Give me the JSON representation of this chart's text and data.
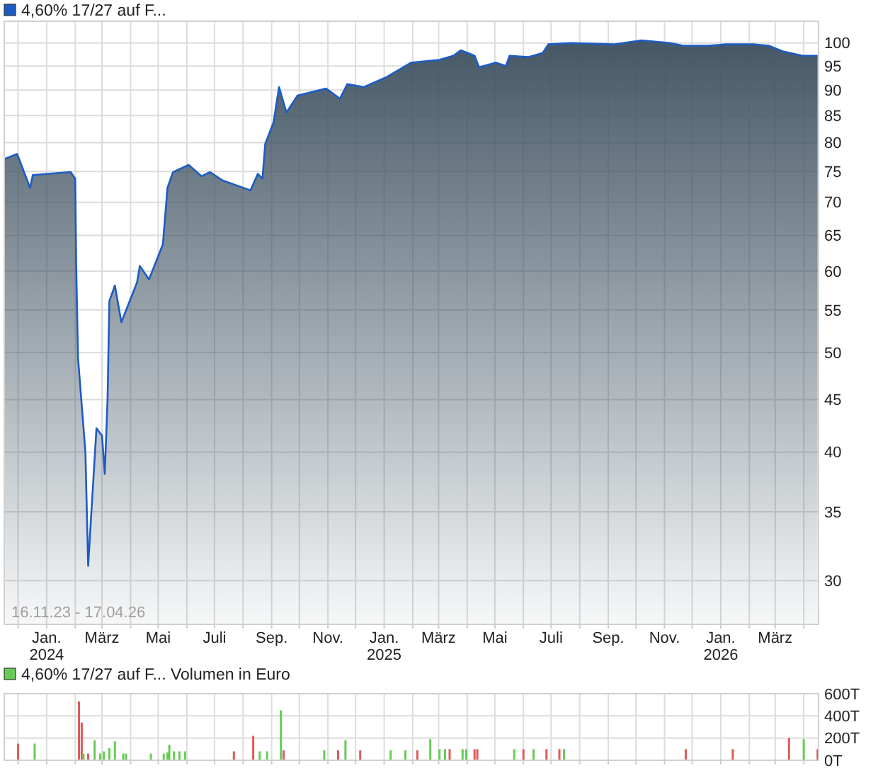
{
  "chart_data": [
    {
      "type": "area",
      "title": "4,60% 17/27 auf F...",
      "annotations": [
        "16.11.23 - 17.04.26"
      ],
      "log": true,
      "grid": true,
      "xlim": [
        "2023-11-16",
        "2026-04-17"
      ],
      "xticks": [
        {
          "value": "2023-12-01",
          "label": null
        },
        {
          "value": "2024-01-01",
          "label": "Jan.\n2024"
        },
        {
          "value": "2024-02-01",
          "label": null
        },
        {
          "value": "2024-03-01",
          "label": "März"
        },
        {
          "value": "2024-04-01",
          "label": null
        },
        {
          "value": "2024-05-01",
          "label": "Mai"
        },
        {
          "value": "2024-06-01",
          "label": null
        },
        {
          "value": "2024-07-01",
          "label": "Juli"
        },
        {
          "value": "2024-08-01",
          "label": null
        },
        {
          "value": "2024-09-01",
          "label": "Sep."
        },
        {
          "value": "2024-10-01",
          "label": null
        },
        {
          "value": "2024-11-01",
          "label": "Nov."
        },
        {
          "value": "2024-12-01",
          "label": null
        },
        {
          "value": "2025-01-01",
          "label": "Jan.\n2025"
        },
        {
          "value": "2025-02-01",
          "label": null
        },
        {
          "value": "2025-03-01",
          "label": "März"
        },
        {
          "value": "2025-04-01",
          "label": null
        },
        {
          "value": "2025-05-01",
          "label": "Mai"
        },
        {
          "value": "2025-06-01",
          "label": null
        },
        {
          "value": "2025-07-01",
          "label": "Juli"
        },
        {
          "value": "2025-08-01",
          "label": null
        },
        {
          "value": "2025-09-01",
          "label": "Sep."
        },
        {
          "value": "2025-10-01",
          "label": null
        },
        {
          "value": "2025-11-01",
          "label": "Nov."
        },
        {
          "value": "2025-12-01",
          "label": null
        },
        {
          "value": "2026-01-01",
          "label": "Jan.\n2026"
        },
        {
          "value": "2026-02-01",
          "label": null
        },
        {
          "value": "2026-03-01",
          "label": "März"
        },
        {
          "value": "2026-04-01",
          "label": null
        }
      ],
      "ylim": [
        27.2,
        105
      ],
      "yticks": [
        30,
        35,
        40,
        45,
        50,
        55,
        60,
        65,
        70,
        75,
        80,
        85,
        90,
        95,
        100
      ],
      "x": [
        "2023-11-16",
        "2023-11-30",
        "2023-12-14",
        "2023-12-17",
        "2024-01-27",
        "2024-02-01",
        "2024-02-02",
        "2024-02-04",
        "2024-02-12",
        "2024-02-15",
        "2024-02-18",
        "2024-02-24",
        "2024-03-01",
        "2024-03-04",
        "2024-03-07",
        "2024-03-09",
        "2024-03-15",
        "2024-03-22",
        "2024-04-08",
        "2024-04-11",
        "2024-04-21",
        "2024-05-06",
        "2024-05-11",
        "2024-05-17",
        "2024-06-03",
        "2024-06-17",
        "2024-06-26",
        "2024-07-10",
        "2024-08-09",
        "2024-08-17",
        "2024-08-22",
        "2024-08-25",
        "2024-09-03",
        "2024-09-09",
        "2024-09-17",
        "2024-09-29",
        "2024-10-30",
        "2024-11-14",
        "2024-11-22",
        "2024-12-10",
        "2025-01-04",
        "2025-01-30",
        "2025-03-02",
        "2025-03-17",
        "2025-03-25",
        "2025-04-09",
        "2025-04-14",
        "2025-05-02",
        "2025-05-13",
        "2025-05-17",
        "2025-06-06",
        "2025-06-22",
        "2025-06-28",
        "2025-07-22",
        "2025-09-07",
        "2025-10-07",
        "2025-11-07",
        "2025-11-21",
        "2025-12-18",
        "2026-01-07",
        "2026-02-07",
        "2026-02-22",
        "2026-03-10",
        "2026-03-31",
        "2026-04-16"
      ],
      "series": [
        {
          "color": "#1c5cc4",
          "values": [
            77.1,
            78.0,
            72.3,
            74.4,
            74.9,
            73.8,
            60.9,
            49.4,
            40.0,
            31.0,
            34.4,
            42.2,
            41.5,
            38.1,
            45.0,
            56.1,
            58.1,
            53.5,
            58.5,
            60.7,
            58.9,
            63.7,
            72.3,
            74.9,
            76.1,
            74.2,
            74.9,
            73.5,
            71.9,
            74.6,
            73.8,
            79.8,
            83.7,
            90.6,
            85.6,
            88.9,
            90.3,
            88.3,
            91.2,
            90.6,
            92.7,
            95.7,
            96.3,
            97.2,
            98.4,
            97.2,
            94.7,
            95.7,
            95.0,
            97.2,
            96.9,
            97.8,
            99.7,
            100,
            99.7,
            100.6,
            100,
            99.4,
            99.4,
            99.7,
            99.7,
            99.4,
            98.1,
            97.2,
            97.2
          ]
        }
      ]
    },
    {
      "type": "bar",
      "title": "4,60% 17/27 auf F... Volumen in Euro",
      "grid": true,
      "tick_labels": "y",
      "xlim": [
        "2023-11-16",
        "2026-04-17"
      ],
      "xticks": [
        {
          "value": "2023-12-01",
          "label": null
        },
        {
          "value": "2024-01-01",
          "label": null
        },
        {
          "value": "2024-02-01",
          "label": null
        },
        {
          "value": "2024-03-01",
          "label": null
        },
        {
          "value": "2024-04-01",
          "label": null
        },
        {
          "value": "2024-05-01",
          "label": null
        },
        {
          "value": "2024-06-01",
          "label": null
        },
        {
          "value": "2024-07-01",
          "label": null
        },
        {
          "value": "2024-08-01",
          "label": null
        },
        {
          "value": "2024-09-01",
          "label": null
        },
        {
          "value": "2024-10-01",
          "label": null
        },
        {
          "value": "2024-11-01",
          "label": null
        },
        {
          "value": "2024-12-01",
          "label": null
        },
        {
          "value": "2025-01-01",
          "label": null
        },
        {
          "value": "2025-02-01",
          "label": null
        },
        {
          "value": "2025-03-01",
          "label": null
        },
        {
          "value": "2025-04-01",
          "label": null
        },
        {
          "value": "2025-05-01",
          "label": null
        },
        {
          "value": "2025-06-01",
          "label": null
        },
        {
          "value": "2025-07-01",
          "label": null
        },
        {
          "value": "2025-08-01",
          "label": null
        },
        {
          "value": "2025-09-01",
          "label": null
        },
        {
          "value": "2025-10-01",
          "label": null
        },
        {
          "value": "2025-11-01",
          "label": null
        },
        {
          "value": "2025-12-01",
          "label": null
        },
        {
          "value": "2026-01-01",
          "label": null
        },
        {
          "value": "2026-02-01",
          "label": null
        },
        {
          "value": "2026-03-01",
          "label": null
        },
        {
          "value": "2026-04-01",
          "label": null
        }
      ],
      "ylim": [
        0,
        600
      ],
      "yticks": [
        {
          "value": 0,
          "label": "0T"
        },
        {
          "value": 200,
          "label": "200T"
        },
        {
          "value": 400,
          "label": "400T"
        },
        {
          "value": 600,
          "label": "600T"
        }
      ],
      "x": [
        "2023-12-01",
        "2023-12-19",
        "2024-02-05",
        "2024-02-08",
        "2024-02-10",
        "2024-02-15",
        "2024-02-22",
        "2024-02-28",
        "2024-03-03",
        "2024-03-09",
        "2024-03-15",
        "2024-03-24",
        "2024-03-27",
        "2024-04-23",
        "2024-05-07",
        "2024-05-11",
        "2024-05-13",
        "2024-05-18",
        "2024-05-24",
        "2024-05-30",
        "2024-07-22",
        "2024-08-12",
        "2024-08-19",
        "2024-08-27",
        "2024-09-11",
        "2024-09-14",
        "2024-10-28",
        "2024-11-12",
        "2024-11-20",
        "2024-12-06",
        "2025-01-08",
        "2025-01-24",
        "2025-02-06",
        "2025-02-20",
        "2025-03-02",
        "2025-03-08",
        "2025-03-13",
        "2025-03-27",
        "2025-03-31",
        "2025-04-09",
        "2025-04-12",
        "2025-05-22",
        "2025-06-01",
        "2025-06-12",
        "2025-06-26",
        "2025-07-10",
        "2025-07-15",
        "2025-11-24",
        "2026-01-14",
        "2026-03-16",
        "2026-04-01",
        "2026-04-16"
      ],
      "series": [
        {
          "color": "#66cc55",
          "values": [
            150,
            150,
            530,
            340,
            60,
            60,
            180,
            60,
            80,
            110,
            170,
            60,
            60,
            60,
            60,
            70,
            140,
            80,
            80,
            80,
            80,
            220,
            80,
            80,
            450,
            90,
            90,
            90,
            180,
            90,
            90,
            90,
            90,
            190,
            100,
            100,
            100,
            100,
            100,
            100,
            100,
            100,
            100,
            100,
            100,
            100,
            100,
            100,
            100,
            200,
            190,
            100
          ],
          "colors": [
            "#e05a5a",
            "#66cc55",
            "#e05a5a",
            "#e05a5a",
            "#66cc55",
            "#e05a5a",
            "#66cc55",
            "#66cc55",
            "#66cc55",
            "#66cc55",
            "#66cc55",
            "#66cc55",
            "#66cc55",
            "#66cc55",
            "#66cc55",
            "#66cc55",
            "#66cc55",
            "#66cc55",
            "#66cc55",
            "#66cc55",
            "#e05a5a",
            "#e05a5a",
            "#66cc55",
            "#66cc55",
            "#66cc55",
            "#e05a5a",
            "#66cc55",
            "#e05a5a",
            "#66cc55",
            "#e05a5a",
            "#66cc55",
            "#66cc55",
            "#e05a5a",
            "#66cc55",
            "#66cc55",
            "#66cc55",
            "#e05a5a",
            "#66cc55",
            "#66cc55",
            "#e05a5a",
            "#e05a5a",
            "#66cc55",
            "#e05a5a",
            "#66cc55",
            "#e05a5a",
            "#e05a5a",
            "#66cc55",
            "#e05a5a",
            "#e05a5a",
            "#e05a5a",
            "#66cc55",
            "#e05a5a"
          ]
        }
      ]
    }
  ]
}
